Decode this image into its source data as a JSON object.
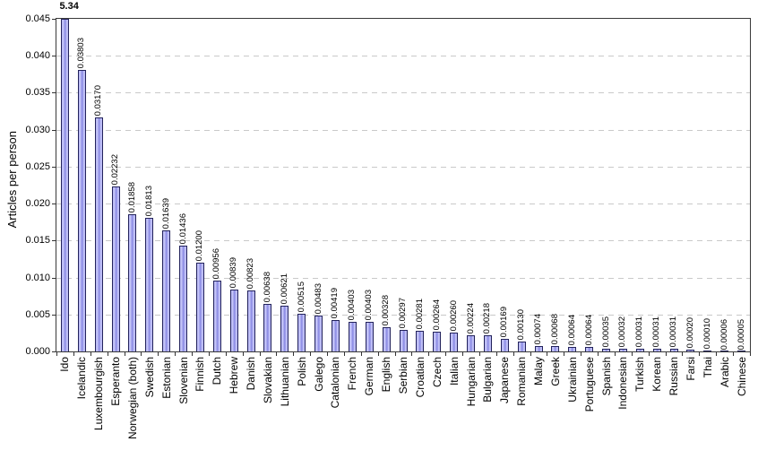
{
  "chart_data": {
    "type": "bar",
    "title": "",
    "ylabel": "Articles per person",
    "xlabel": "",
    "ylim": [
      0,
      0.045
    ],
    "ytick_labels": [
      "0.000",
      "0.005",
      "0.010",
      "0.015",
      "0.020",
      "0.025",
      "0.030",
      "0.035",
      "0.040",
      "0.045"
    ],
    "grid": "dashed-horizontal",
    "legend": "none",
    "bar_fill": "#b4b4f2",
    "bar_fill_center": "#8e8ee5",
    "bar_border": "#23235c",
    "gridline_color": "#c9c9c9",
    "axis_color": "#3a3a3a",
    "categories": [
      "Ido",
      "Icelandic",
      "Luxembourgish",
      "Esperanto",
      "Norwegian (both)",
      "Swedish",
      "Estonian",
      "Slovenian",
      "Finnish",
      "Dutch",
      "Hebrew",
      "Danish",
      "Slovakian",
      "Lithuanian",
      "Polish",
      "Galego",
      "Catalonian",
      "French",
      "German",
      "English",
      "Serbian",
      "Croatian",
      "Czech",
      "Italian",
      "Hungarian",
      "Bulgarian",
      "Japanese",
      "Romanian",
      "Malay",
      "Greek",
      "Ukrainian",
      "Portuguese",
      "Spanish",
      "Indonesian",
      "Turkish",
      "Korean",
      "Russian",
      "Farsi",
      "Thai",
      "Arabic",
      "Chinese"
    ],
    "values": [
      5.34,
      0.03803,
      0.0317,
      0.02232,
      0.01858,
      0.01813,
      0.01639,
      0.01436,
      0.012,
      0.00956,
      0.00839,
      0.00823,
      0.00638,
      0.00621,
      0.00515,
      0.00483,
      0.00419,
      0.00403,
      0.00403,
      0.00328,
      0.00297,
      0.00281,
      0.00264,
      0.0026,
      0.00224,
      0.00218,
      0.00169,
      0.0013,
      0.00074,
      0.00068,
      0.00064,
      0.00064,
      0.00035,
      0.00032,
      0.00031,
      0.00031,
      0.00031,
      0.0002,
      0.0001,
      6e-05,
      5e-05
    ],
    "value_labels": [
      "5.34",
      "0.03803",
      "0.03170",
      "0.02232",
      "0.01858",
      "0.01813",
      "0.01639",
      "0.01436",
      "0.01200",
      "0.00956",
      "0.00839",
      "0.00823",
      "0.00638",
      "0.00621",
      "0.00515",
      "0.00483",
      "0.00419",
      "0.00403",
      "0.00403",
      "0.00328",
      "0.00297",
      "0.00281",
      "0.00264",
      "0.00260",
      "0.00224",
      "0.00218",
      "0.00169",
      "0.00130",
      "0.00074",
      "0.00068",
      "0.00064",
      "0.00064",
      "0.00035",
      "0.00032",
      "0.00031",
      "0.00031",
      "0.00031",
      "0.00020",
      "0.00010",
      "0.00006",
      "0.00005"
    ]
  }
}
